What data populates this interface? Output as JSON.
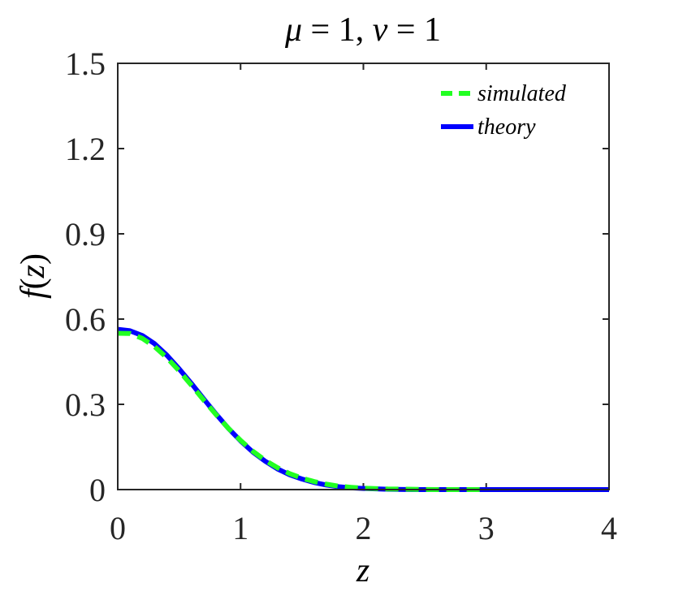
{
  "chart_data": {
    "type": "line",
    "title_parts": {
      "mu": "μ",
      "eq1": " = 1, ",
      "nu": "ν",
      "eq2": " = 1"
    },
    "xlabel": "z",
    "ylabel_parts": {
      "f": "f",
      "open": "(",
      "z": "z",
      "close": ")"
    },
    "xlim": [
      0,
      4
    ],
    "ylim": [
      0,
      1.5
    ],
    "xticks": [
      0,
      1,
      2,
      3,
      4
    ],
    "xtick_labels": [
      "0",
      "1",
      "2",
      "3",
      "4"
    ],
    "yticks": [
      0,
      0.3,
      0.6,
      0.9,
      1.2,
      1.5
    ],
    "ytick_labels": [
      "0",
      "0.3",
      "0.6",
      "0.9",
      "1.2",
      "1.5"
    ],
    "grid": false,
    "legend_position": "top-right",
    "series": [
      {
        "name": "simulated",
        "color": "#22ff22",
        "style": "dashed",
        "x": [
          0,
          0.1,
          0.2,
          0.3,
          0.4,
          0.5,
          0.6,
          0.7,
          0.8,
          0.9,
          1.0,
          1.1,
          1.2,
          1.3,
          1.4,
          1.5,
          1.6,
          1.7,
          1.8,
          1.9,
          2.0,
          2.2,
          2.4,
          2.6,
          2.8,
          3.0
        ],
        "y": [
          0.55,
          0.549,
          0.532,
          0.503,
          0.464,
          0.418,
          0.367,
          0.315,
          0.264,
          0.216,
          0.173,
          0.135,
          0.103,
          0.077,
          0.056,
          0.04,
          0.028,
          0.019,
          0.012,
          0.008,
          0.005,
          0.002,
          0.001,
          0.0,
          0.0,
          0.0
        ]
      },
      {
        "name": "theory",
        "color": "#0000ff",
        "style": "solid",
        "x": [
          0,
          0.1,
          0.2,
          0.3,
          0.4,
          0.5,
          0.6,
          0.7,
          0.8,
          0.9,
          1.0,
          1.1,
          1.2,
          1.3,
          1.4,
          1.5,
          1.6,
          1.7,
          1.8,
          1.9,
          2.0,
          2.2,
          2.4,
          2.6,
          2.8,
          3.0,
          3.5,
          4.0
        ],
        "y": [
          0.564,
          0.559,
          0.542,
          0.513,
          0.473,
          0.425,
          0.373,
          0.319,
          0.266,
          0.216,
          0.171,
          0.132,
          0.1,
          0.073,
          0.052,
          0.037,
          0.025,
          0.016,
          0.01,
          0.006,
          0.004,
          0.001,
          0.0,
          0.0,
          0.0,
          0.0,
          0.0,
          0.0
        ]
      }
    ]
  }
}
